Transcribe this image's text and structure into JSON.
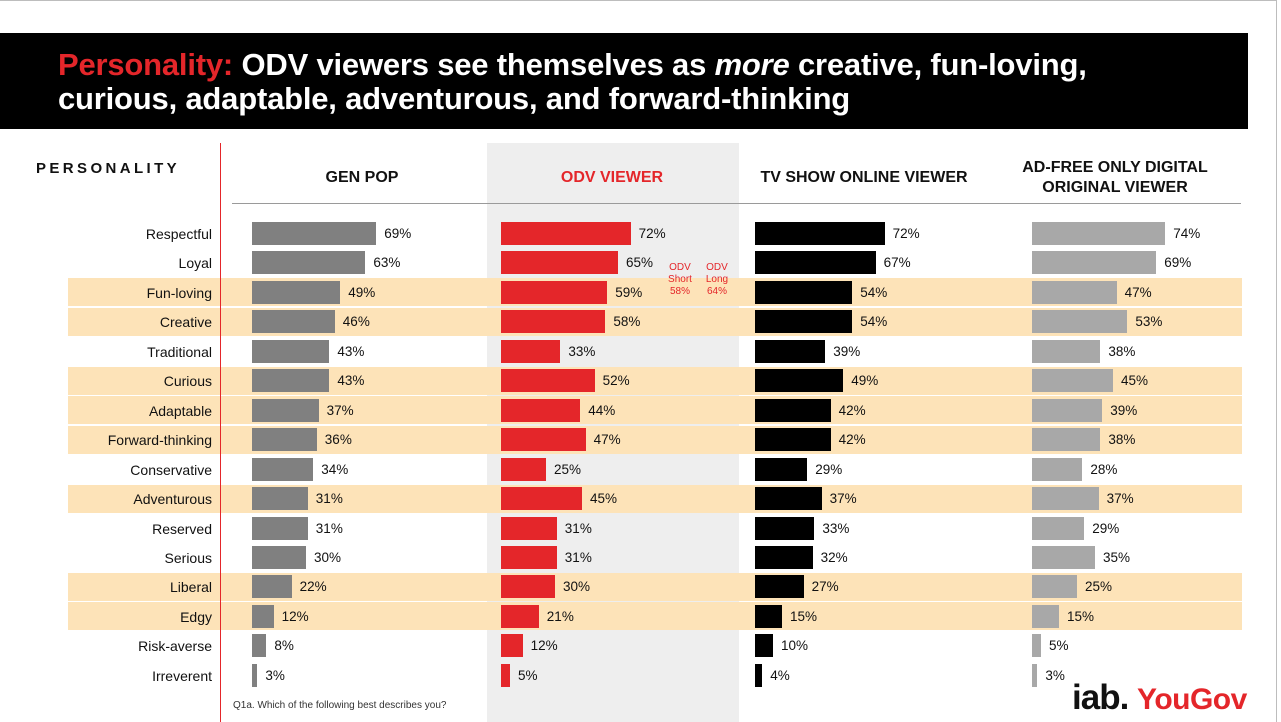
{
  "header": {
    "title_accent": "Personality:",
    "title_part1": " ODV viewers see themselves as ",
    "title_emphasis": "more",
    "title_part2": " creative, fun-loving,",
    "title_line2": "curious, adaptable, adventurous, and forward-thinking"
  },
  "section_label": "PERSONALITY",
  "footnote": "Q1a. Which of the following best describes you?",
  "logo": {
    "iab": "iab.",
    "yougov": "YouGov"
  },
  "colors": {
    "gen_pop": "#808080",
    "odv": "#e4262a",
    "tv_show": "#000000",
    "ad_free": "#a8a8a8",
    "highlight_row": "#fde3b8",
    "accent": "#e4262a"
  },
  "annotations": [
    {
      "label_top": "ODV",
      "label_mid": "Short",
      "value": "58%"
    },
    {
      "label_top": "ODV",
      "label_mid": "Long",
      "value": "64%"
    }
  ],
  "chart_data": {
    "type": "bar",
    "orientation": "horizontal",
    "title": "Personality: ODV viewers see themselves as more creative, fun-loving, curious, adaptable, adventurous, and forward-thinking",
    "categories": [
      "Respectful",
      "Loyal",
      "Fun-loving",
      "Creative",
      "Traditional",
      "Curious",
      "Adaptable",
      "Forward-thinking",
      "Conservative",
      "Adventurous",
      "Reserved",
      "Serious",
      "Liberal",
      "Edgy",
      "Risk-averse",
      "Irreverent"
    ],
    "highlighted": [
      false,
      false,
      true,
      true,
      false,
      true,
      true,
      true,
      false,
      true,
      false,
      false,
      true,
      true,
      false,
      false
    ],
    "series": [
      {
        "name": "GEN POP",
        "values": [
          69,
          63,
          49,
          46,
          43,
          43,
          37,
          36,
          34,
          31,
          31,
          30,
          22,
          12,
          8,
          3
        ]
      },
      {
        "name": "ODV VIEWER",
        "values": [
          72,
          65,
          59,
          58,
          33,
          52,
          44,
          47,
          25,
          45,
          31,
          31,
          30,
          21,
          12,
          5
        ]
      },
      {
        "name": "TV SHOW ONLINE VIEWER",
        "values": [
          72,
          67,
          54,
          54,
          39,
          49,
          42,
          42,
          29,
          37,
          33,
          32,
          27,
          15,
          10,
          4
        ]
      },
      {
        "name_line1": "AD-FREE ONLY DIGITAL",
        "name_line2": "ORIGINAL VIEWER",
        "values": [
          74,
          69,
          47,
          53,
          38,
          45,
          39,
          38,
          28,
          37,
          29,
          35,
          25,
          15,
          5,
          3
        ]
      }
    ],
    "unit": "%"
  }
}
